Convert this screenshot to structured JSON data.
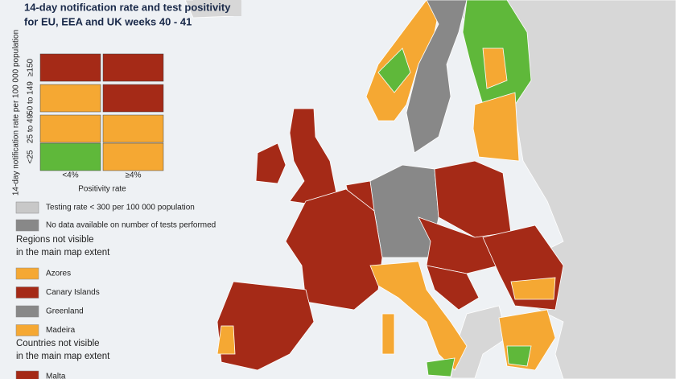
{
  "title": [
    "14-day notification rate and test positivity",
    "for EU, EEA and UK weeks 40 - 41"
  ],
  "matrix": {
    "y_label": "14-day notification rate per 100 000 population",
    "rows": [
      {
        "label": "≥150",
        "colors": [
          "#a52a17",
          "#a52a17"
        ]
      },
      {
        "label": "50 to 149",
        "colors": [
          "#f5a833",
          "#a52a17"
        ]
      },
      {
        "label": "25 to 49",
        "colors": [
          "#f5a833",
          "#f5a833"
        ]
      },
      {
        "label": "<25",
        "colors": [
          "#5fb83a",
          "#f5a833"
        ]
      }
    ],
    "columns": [
      "<4%",
      "≥4%"
    ],
    "x_label": "Positivity rate"
  },
  "legend": [
    {
      "label": "Testing rate < 300 per 100 000 population",
      "color": "#c8c8c8"
    },
    {
      "label": "No data available on number of tests performed",
      "color": "#888888"
    }
  ],
  "regions_heading": [
    "Regions not visible",
    "in the main map extent"
  ],
  "regions": [
    {
      "label": "Azores",
      "color": "#f5a833"
    },
    {
      "label": "Canary Islands",
      "color": "#a52a17"
    },
    {
      "label": "Greenland",
      "color": "#888888"
    },
    {
      "label": "Madeira",
      "color": "#f5a833"
    }
  ],
  "countries_heading": [
    "Countries not visible",
    "in the main map extent"
  ],
  "countries": [
    {
      "label": "Malta",
      "color": "#a52a17"
    }
  ]
}
